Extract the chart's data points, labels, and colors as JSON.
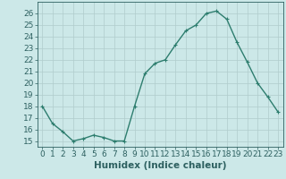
{
  "x": [
    0,
    1,
    2,
    3,
    4,
    5,
    6,
    7,
    8,
    9,
    10,
    11,
    12,
    13,
    14,
    15,
    16,
    17,
    18,
    19,
    20,
    21,
    22,
    23
  ],
  "y": [
    18,
    16.5,
    15.8,
    15,
    15.2,
    15.5,
    15.3,
    15,
    15,
    18,
    20.8,
    21.7,
    22,
    23.3,
    24.5,
    25,
    26,
    26.2,
    25.5,
    23.5,
    21.8,
    20,
    18.8,
    17.5
  ],
  "line_color": "#2d7d6e",
  "marker": "+",
  "marker_size": 3,
  "marker_linewidth": 0.8,
  "bg_color": "#cce8e8",
  "grid_color": "#b0cccc",
  "xlabel": "Humidex (Indice chaleur)",
  "ylim": [
    14.5,
    27.0
  ],
  "xlim": [
    -0.5,
    23.5
  ],
  "yticks": [
    15,
    16,
    17,
    18,
    19,
    20,
    21,
    22,
    23,
    24,
    25,
    26
  ],
  "xticks": [
    0,
    1,
    2,
    3,
    4,
    5,
    6,
    7,
    8,
    9,
    10,
    11,
    12,
    13,
    14,
    15,
    16,
    17,
    18,
    19,
    20,
    21,
    22,
    23
  ],
  "xtick_labels": [
    "0",
    "1",
    "2",
    "3",
    "4",
    "5",
    "6",
    "7",
    "8",
    "9",
    "10",
    "11",
    "12",
    "13",
    "14",
    "15",
    "16",
    "17",
    "18",
    "19",
    "20",
    "21",
    "22",
    "23"
  ],
  "xlabel_fontsize": 7.5,
  "tick_fontsize": 6.5,
  "axis_color": "#2d6060",
  "line_width": 1.0
}
